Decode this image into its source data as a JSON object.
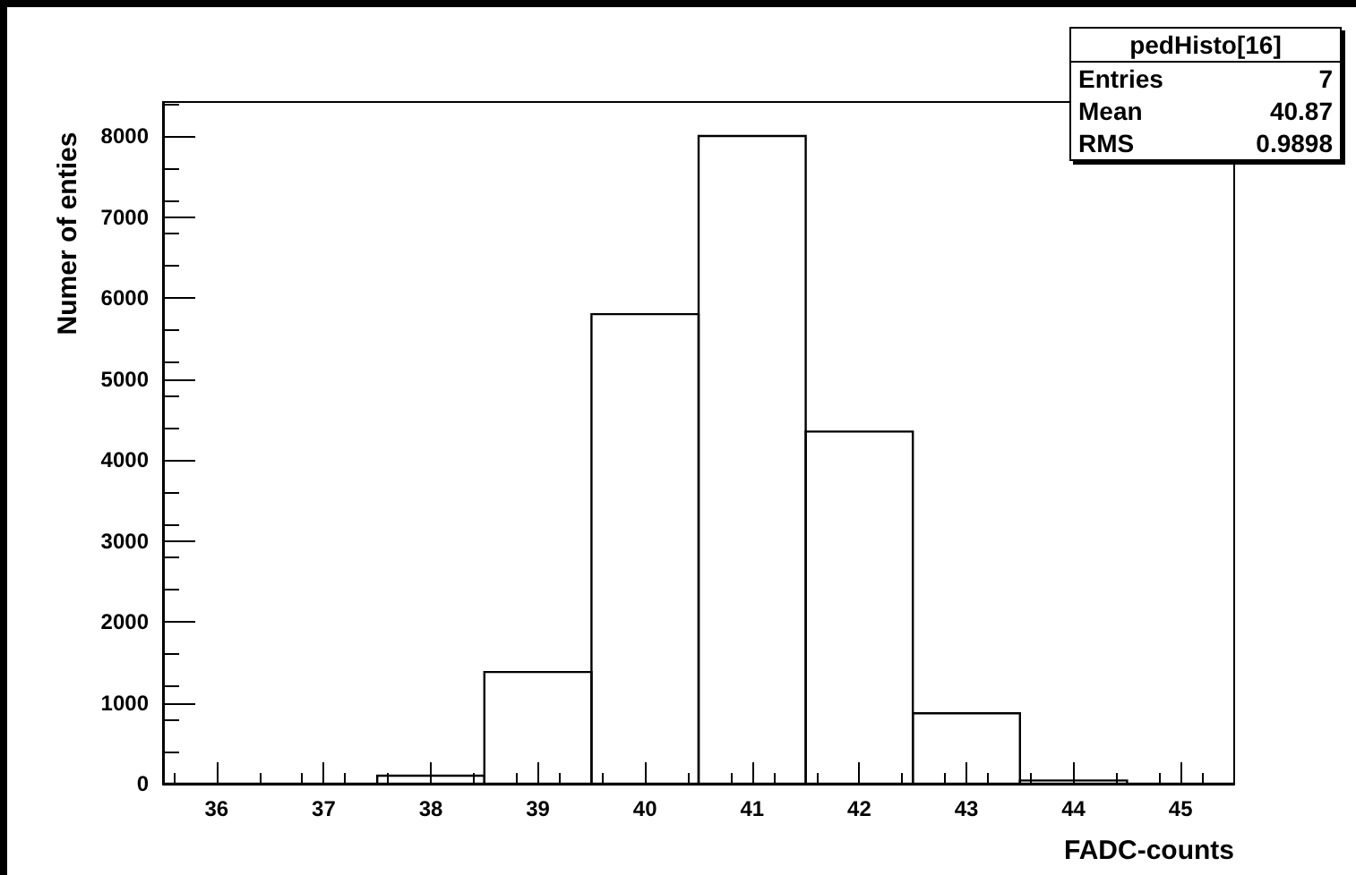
{
  "chart_data": {
    "type": "histogram",
    "xlabel": "FADC-counts",
    "ylabel": "Numer of enties",
    "bins": [
      35.5,
      36.5,
      37.5,
      38.5,
      39.5,
      40.5,
      41.5,
      42.5,
      43.5,
      44.5,
      45.5
    ],
    "values": [
      0,
      0,
      100,
      1380,
      5800,
      8000,
      4350,
      870,
      40,
      0
    ],
    "color": "#000000",
    "xlim": [
      35.5,
      45.5
    ],
    "xticks": [
      36,
      37,
      38,
      39,
      40,
      41,
      42,
      43,
      44,
      45
    ],
    "ylim": [
      0,
      8420
    ],
    "yticks": [
      0,
      1000,
      2000,
      3000,
      4000,
      5000,
      6000,
      7000,
      8000
    ],
    "grid": false,
    "annotations": [
      "pedHisto[16]",
      "Entries",
      "7",
      "Mean",
      "40.87",
      "RMS",
      "0.9898"
    ]
  }
}
